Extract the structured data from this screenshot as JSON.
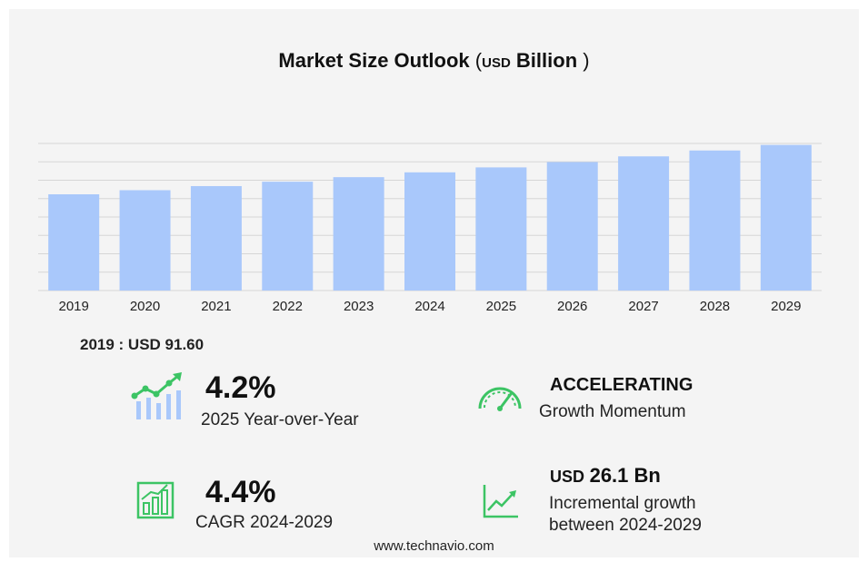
{
  "header": {
    "title_main": "Market Size Outlook",
    "paren_open": "(",
    "unit_small": "USD",
    "unit_big": "Billion",
    "paren_close": ")"
  },
  "chart_data": {
    "type": "bar",
    "categories": [
      "2019",
      "2020",
      "2021",
      "2022",
      "2023",
      "2024",
      "2025",
      "2026",
      "2027",
      "2028",
      "2029"
    ],
    "values": [
      91.6,
      95.5,
      99.4,
      103.6,
      107.9,
      112.5,
      117.2,
      122.3,
      127.7,
      133.3,
      138.6
    ],
    "ylim": [
      0,
      140
    ],
    "grid": true,
    "bar_color": "#a9c8fb",
    "title": "Market Size Outlook ( USD Billion )"
  },
  "base_value": "2019 : USD  91.60",
  "stats": {
    "yoy_value": "4.2%",
    "yoy_label": "2025 Year-over-Year",
    "momentum_value": "ACCELERATING",
    "momentum_label": "Growth Momentum",
    "cagr_value": "4.4%",
    "cagr_label": "CAGR 2024-2029",
    "incremental_prefix": "USD",
    "incremental_value": "26.1 Bn",
    "incremental_label_1": "Incremental growth",
    "incremental_label_2": "between 2024-2029"
  },
  "footer": "www.technavio.com",
  "colors": {
    "icon_green": "#3cc464",
    "icon_blue": "#a9c8fb",
    "panel": "#f4f4f4",
    "grid": "#d6d6d6"
  }
}
